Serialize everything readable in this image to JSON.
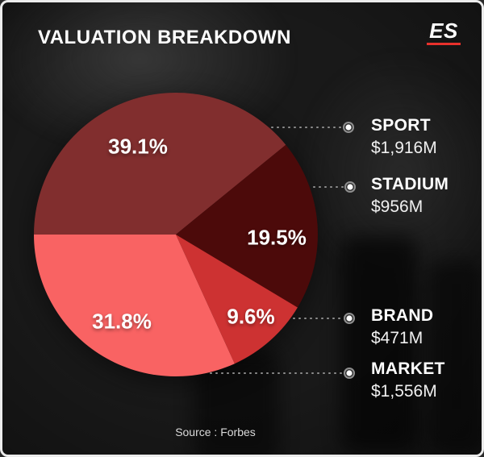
{
  "header": {
    "title": "VALUATION BREAKDOWN",
    "logo_text": "ES"
  },
  "colors": {
    "accent": "#e8312c",
    "card-bg": "#191919",
    "leader": "#9b9b9b"
  },
  "footer": {
    "source": "Source : Forbes"
  },
  "chart_data": {
    "type": "pie",
    "title": "VALUATION BREAKDOWN",
    "source": "Forbes",
    "start_angle_deg": 180,
    "direction": "clockwise",
    "legend_position": "right",
    "slices": [
      {
        "label": "SPORT",
        "value_m_usd": 1916,
        "value_label": "$1,916M",
        "percent": 39.1,
        "percent_label": "39.1%",
        "color": "#812e2e"
      },
      {
        "label": "STADIUM",
        "value_m_usd": 956,
        "value_label": "$956M",
        "percent": 19.5,
        "percent_label": "19.5%",
        "color": "#4c0a0a"
      },
      {
        "label": "BRAND",
        "value_m_usd": 471,
        "value_label": "$471M",
        "percent": 9.6,
        "percent_label": "9.6%",
        "color": "#cd3232"
      },
      {
        "label": "MARKET",
        "value_m_usd": 1556,
        "value_label": "$1,556M",
        "percent": 31.8,
        "percent_label": "31.8%",
        "color": "#f96363"
      }
    ]
  }
}
